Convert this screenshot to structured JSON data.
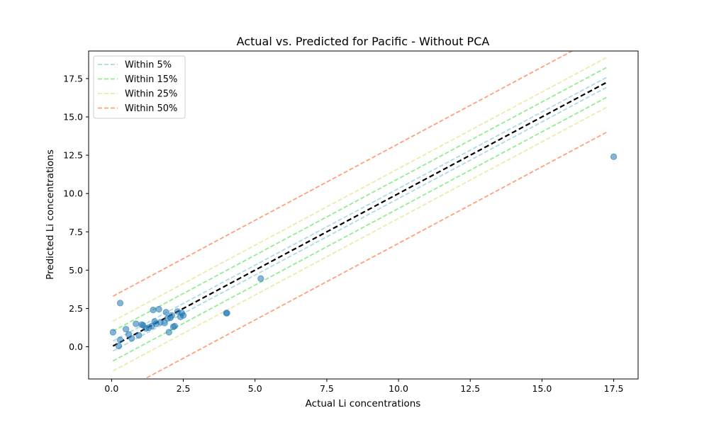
{
  "chart_data": {
    "type": "scatter",
    "title": "Actual vs. Predicted for Pacific - Without PCA",
    "xlabel": "Actual Li concentrations",
    "ylabel": "Predicted Li concentrations",
    "xlim": [
      -0.8,
      18.35
    ],
    "ylim": [
      -2.1,
      19.3
    ],
    "x_ticks": [
      0.0,
      2.5,
      5.0,
      7.5,
      10.0,
      12.5,
      15.0,
      17.5
    ],
    "y_ticks": [
      0.0,
      2.5,
      5.0,
      7.5,
      10.0,
      12.5,
      15.0,
      17.5
    ],
    "x_tick_labels": [
      "0.0",
      "2.5",
      "5.0",
      "7.5",
      "10.0",
      "12.5",
      "15.0",
      "17.5"
    ],
    "y_tick_labels": [
      "0.0",
      "2.5",
      "5.0",
      "7.5",
      "10.0",
      "12.5",
      "15.0",
      "17.5"
    ],
    "grid": false,
    "legend_position": "upper-left",
    "ideal_line": {
      "style": "dashed",
      "color": "#000000",
      "range": [
        0.05,
        17.3
      ]
    },
    "bands": [
      {
        "name": "Within 5%",
        "offset": 0.325,
        "color": "#add8e6"
      },
      {
        "name": "Within 15%",
        "offset": 0.975,
        "color": "#90ee90"
      },
      {
        "name": "Within 25%",
        "offset": 1.625,
        "color": "#eee8aa"
      },
      {
        "name": "Within 50%",
        "offset": 3.25,
        "color": "#ffa07a"
      }
    ],
    "points": {
      "color": "#1f77b4",
      "opacity": 0.55,
      "x": [
        0.05,
        0.3,
        0.25,
        0.3,
        0.5,
        0.6,
        0.7,
        0.85,
        0.95,
        1.05,
        1.1,
        1.2,
        1.3,
        1.4,
        1.45,
        1.5,
        1.55,
        1.65,
        1.7,
        1.85,
        1.9,
        1.95,
        2.0,
        2.05,
        2.1,
        2.15,
        2.2,
        2.3,
        2.4,
        2.45,
        2.5,
        4.0,
        4.02,
        5.2,
        17.5
      ],
      "y": [
        0.95,
        2.85,
        0.05,
        0.45,
        1.15,
        0.8,
        0.55,
        1.5,
        0.75,
        1.45,
        1.4,
        1.2,
        1.25,
        1.35,
        2.4,
        1.65,
        1.5,
        2.45,
        1.6,
        1.55,
        2.25,
        1.85,
        0.95,
        1.9,
        2.05,
        1.3,
        1.35,
        2.3,
        1.95,
        2.2,
        2.05,
        2.2,
        2.2,
        4.45,
        12.4
      ]
    }
  }
}
